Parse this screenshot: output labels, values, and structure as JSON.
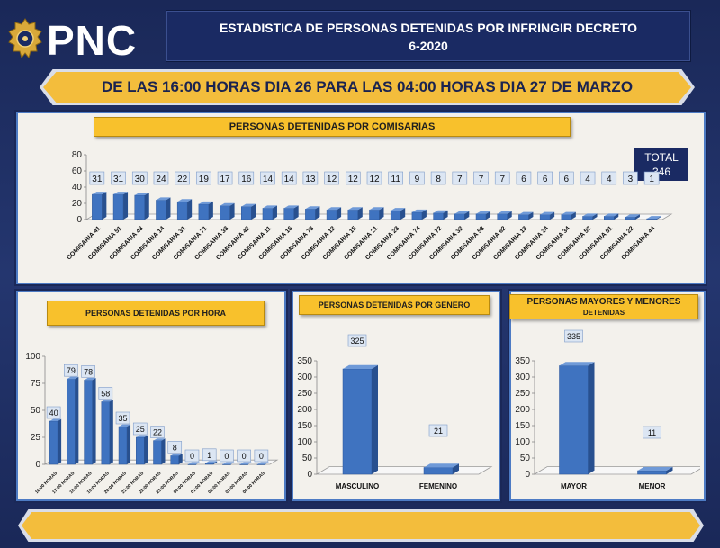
{
  "header": {
    "logo_text": "PNC",
    "title_line1": "ESTADISTICA DE PERSONAS DETENIDAS POR INFRINGIR DECRETO",
    "title_line2": "6-2020",
    "banner": "DE LAS 16:00 HORAS DIA 26 PARA LAS 04:00 HORAS DIA 27 DE MARZO"
  },
  "total": {
    "label": "TOTAL",
    "value": "346"
  },
  "colors": {
    "bar": "#3f73c0",
    "bar_dark": "#28508f",
    "bar_top": "#6f9ad8",
    "label_box": "#dce6f3"
  },
  "chart_data": [
    {
      "type": "bar",
      "title": "PERSONAS DETENIDAS POR COMISARIAS",
      "categories": [
        "COMISARIA 41",
        "COMISARIA 51",
        "COMISARIA 43",
        "COMISARIA 14",
        "COMISARIA 31",
        "COMISARIA 71",
        "COMISARIA 33",
        "COMISARIA 42",
        "COMISARIA 11",
        "COMISARIA 16",
        "COMISARIA 73",
        "COMISARIA 12",
        "COMISARIA 15",
        "COMISARIA 21",
        "COMISARIA 23",
        "COMISARIA 74",
        "COMISARIA 72",
        "COMISARIA 32",
        "COMISARIA 53",
        "COMISARIA 62",
        "COMISARIA 13",
        "COMISARIA 24",
        "COMISARIA 34",
        "COMISARIA 52",
        "COMISARIA 61",
        "COMISARIA 22",
        "COMISARIA 44"
      ],
      "values": [
        31,
        31,
        30,
        24,
        22,
        19,
        17,
        16,
        14,
        14,
        13,
        12,
        12,
        12,
        11,
        9,
        8,
        7,
        7,
        7,
        6,
        6,
        6,
        4,
        4,
        3,
        1
      ],
      "yticks": [
        0,
        20,
        40,
        60,
        80
      ],
      "ylim": [
        0,
        80
      ]
    },
    {
      "type": "bar",
      "title": "PERSONAS DETENIDAS POR HORA",
      "categories": [
        "16:00 HORAS",
        "17:00 HORAS",
        "18:00 HORAS",
        "19:00 HORAS",
        "20:00 HORAS",
        "21:00 HORAS",
        "22:00 HORAS",
        "23:00 HORAS",
        "00:00 HORAS",
        "01:00 HORAS",
        "02:00 HORAS",
        "03:00 HORAS",
        "04:00 HORAS"
      ],
      "values": [
        40,
        79,
        78,
        58,
        35,
        25,
        22,
        8,
        0,
        1,
        0,
        0,
        0
      ],
      "yticks": [
        0,
        25,
        50,
        75,
        100
      ],
      "ylim": [
        0,
        100
      ]
    },
    {
      "type": "bar",
      "title": "PERSONAS DETENIDAS POR GENERO",
      "categories": [
        "MASCULINO",
        "FEMENINO"
      ],
      "values": [
        325,
        21
      ],
      "yticks": [
        0,
        50,
        100,
        150,
        200,
        250,
        300,
        350
      ],
      "ylim": [
        0,
        350
      ]
    },
    {
      "type": "bar",
      "title": "PERSONAS MAYORES Y MENORES",
      "subtitle": "DETENIDAS",
      "categories": [
        "MAYOR",
        "MENOR"
      ],
      "values": [
        335,
        11
      ],
      "yticks": [
        0,
        50,
        100,
        150,
        200,
        250,
        300,
        350
      ],
      "ylim": [
        0,
        350
      ]
    }
  ]
}
